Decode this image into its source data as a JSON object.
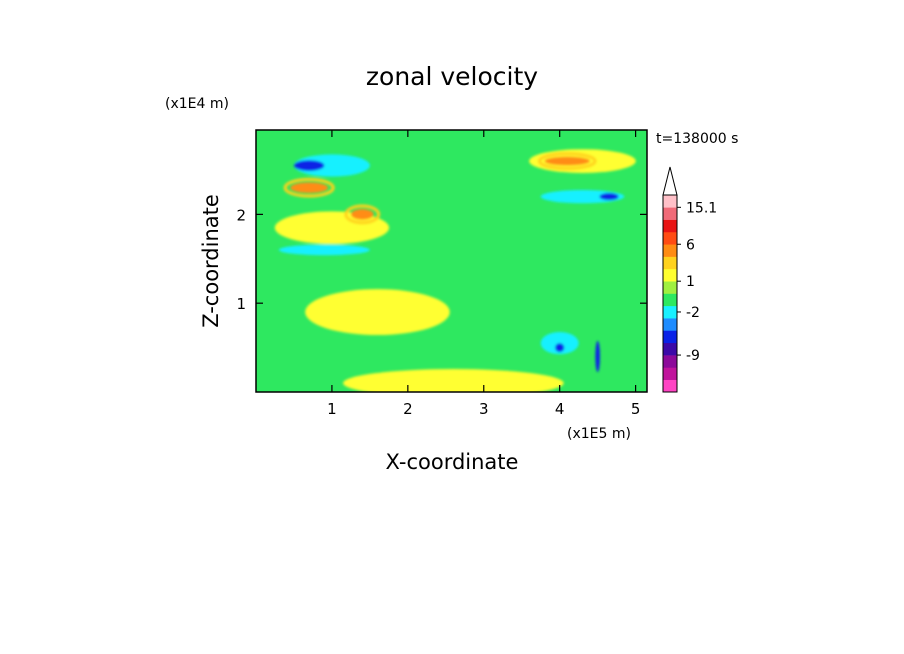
{
  "chart_data": {
    "type": "heatmap",
    "title": "zonal velocity",
    "xlabel": "X-coordinate",
    "ylabel": "Z-coordinate",
    "x_unit": "(x1E5 m)",
    "y_unit": "(x1E4 m)",
    "time_label": "t=138000 s",
    "xlim": [
      0,
      5.15
    ],
    "ylim": [
      0,
      2.95
    ],
    "x_ticks": [
      "1",
      "2",
      "3",
      "4",
      "5"
    ],
    "y_ticks": [
      "1",
      "2"
    ],
    "colorbar": {
      "tick_labels": [
        "15.1",
        "6",
        "1",
        "-2",
        "-9"
      ],
      "tick_values": [
        15.1,
        6,
        1,
        -2,
        -9
      ],
      "color_levels": [
        "#ff44c4",
        "#c0149c",
        "#8c0a9a",
        "#3c0aa8",
        "#0a22e6",
        "#1e8cff",
        "#19f0ff",
        "#2ee860",
        "#a0f040",
        "#ffff30",
        "#ffd21e",
        "#ff8c14",
        "#ff4c14",
        "#e81414",
        "#f06a78",
        "#ffc0c8"
      ],
      "overflow_triangle_color": "#ffffff"
    },
    "field_colors": {
      "background": "#2ee860",
      "weak_positive": "#ffff30",
      "moderate_positive": "#ffd21e",
      "strong_positive": "#ff8c14",
      "weak_negative": "#19f0ff",
      "strong_negative": "#0a22e6"
    },
    "features": [
      {
        "kind": "positive",
        "x": 2.6,
        "z": 0.1,
        "dx": 2.8,
        "dz": 0.25
      },
      {
        "kind": "positive",
        "x": 1.6,
        "z": 0.9,
        "dx": 1.8,
        "dz": 0.45
      },
      {
        "kind": "positive",
        "x": 1.0,
        "z": 1.85,
        "dx": 1.4,
        "dz": 0.3
      },
      {
        "kind": "positive",
        "x": 4.3,
        "z": 2.6,
        "dx": 1.3,
        "dz": 0.2
      },
      {
        "kind": "strong_positive",
        "x": 0.7,
        "z": 2.3,
        "dx": 0.5,
        "dz": 0.12
      },
      {
        "kind": "strong_positive",
        "x": 1.4,
        "z": 2.0,
        "dx": 0.3,
        "dz": 0.12
      },
      {
        "kind": "strong_positive",
        "x": 4.1,
        "z": 2.6,
        "dx": 0.6,
        "dz": 0.1
      },
      {
        "kind": "strong_negative",
        "x": 0.7,
        "z": 2.55,
        "dx": 0.4,
        "dz": 0.12
      },
      {
        "kind": "strong_negative",
        "x": 4.65,
        "z": 2.2,
        "dx": 0.25,
        "dz": 0.08
      },
      {
        "kind": "strong_negative",
        "x": 4.0,
        "z": 0.5,
        "dx": 0.12,
        "dz": 0.1
      },
      {
        "kind": "strong_negative",
        "x": 4.5,
        "z": 0.4,
        "dx": 0.06,
        "dz": 0.35
      },
      {
        "kind": "negative",
        "x": 1.0,
        "z": 2.55,
        "dx": 1.0,
        "dz": 0.25
      },
      {
        "kind": "negative",
        "x": 4.3,
        "z": 2.2,
        "dx": 1.1,
        "dz": 0.15
      },
      {
        "kind": "negative",
        "x": 0.9,
        "z": 1.6,
        "dx": 1.2,
        "dz": 0.12
      },
      {
        "kind": "negative",
        "x": 4.0,
        "z": 0.55,
        "dx": 0.5,
        "dz": 0.25
      }
    ]
  }
}
